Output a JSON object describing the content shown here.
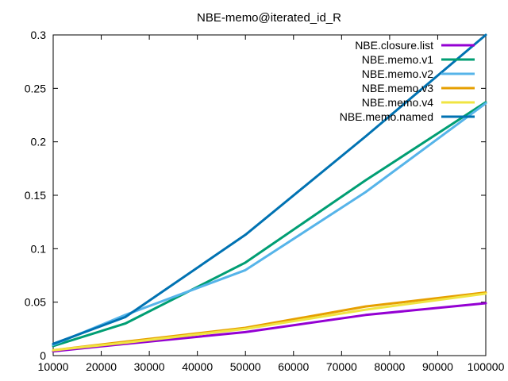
{
  "chart_data": {
    "type": "line",
    "title": "NBE-memo@iterated_id_R",
    "xlabel": "",
    "ylabel": "",
    "xlim": [
      10000,
      100000
    ],
    "ylim": [
      0,
      0.3
    ],
    "xticks": [
      "10000",
      "20000",
      "30000",
      "40000",
      "50000",
      "60000",
      "70000",
      "80000",
      "90000",
      "100000"
    ],
    "yticks": [
      "0",
      "0.05",
      "0.1",
      "0.15",
      "0.2",
      "0.25",
      "0.3"
    ],
    "xtick_values": [
      10000,
      20000,
      30000,
      40000,
      50000,
      60000,
      70000,
      80000,
      90000,
      100000
    ],
    "ytick_values": [
      0,
      0.05,
      0.1,
      0.15,
      0.2,
      0.25,
      0.3
    ],
    "grid": false,
    "legend_position": "top-right",
    "x": [
      10000,
      25000,
      50000,
      75000,
      100000
    ],
    "series": [
      {
        "name": "NBE.closure.list",
        "color": "#9400d3",
        "values": [
          0.004,
          0.011,
          0.022,
          0.038,
          0.049
        ]
      },
      {
        "name": "NBE.memo.v1",
        "color": "#009e73",
        "values": [
          0.009,
          0.03,
          0.087,
          0.164,
          0.237
        ]
      },
      {
        "name": "NBE.memo.v2",
        "color": "#56b4e9",
        "values": [
          0.01,
          0.038,
          0.08,
          0.153,
          0.236
        ]
      },
      {
        "name": "NBE.memo.v3",
        "color": "#e69f00",
        "values": [
          0.005,
          0.013,
          0.026,
          0.046,
          0.059
        ]
      },
      {
        "name": "NBE.memo.v4",
        "color": "#f0e442",
        "values": [
          0.005,
          0.012,
          0.025,
          0.043,
          0.058
        ]
      },
      {
        "name": "NBE.memo.named",
        "color": "#0072b2",
        "values": [
          0.011,
          0.036,
          0.113,
          0.205,
          0.3
        ]
      }
    ]
  }
}
